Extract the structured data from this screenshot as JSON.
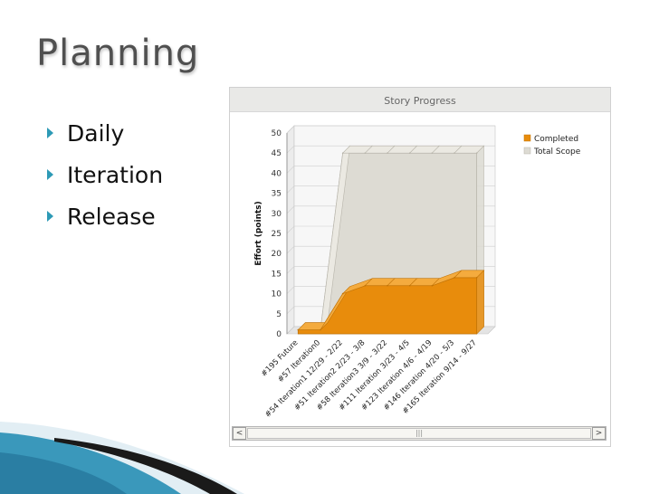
{
  "slide": {
    "title": "Planning",
    "bullets": [
      "Daily",
      "Iteration",
      "Release"
    ]
  },
  "chart_window": {
    "title": "Story Progress",
    "scrollbar": {
      "left_arrow": "<",
      "right_arrow": ">",
      "thumb_grip": "|||"
    }
  },
  "colors": {
    "completed": "#e88c0c",
    "total_scope": "#dddbd3",
    "bullet_arrow": "#2d9ab6",
    "wave": "#2f93b8"
  },
  "chart_data": {
    "type": "area",
    "title": "Story Progress",
    "xlabel": "",
    "ylabel": "Effort (points)",
    "ylim": [
      0,
      50
    ],
    "yticks": [
      0,
      5,
      10,
      15,
      20,
      25,
      30,
      35,
      40,
      45,
      50
    ],
    "grid": true,
    "legend_position": "top-right",
    "categories": [
      "#195 Future",
      "#57 Iteration0",
      "#54 Iteration1 12/29 - 2/22",
      "#51 Iteration2 2/23 - 3/8",
      "#58 Iteration3 3/9 - 3/22",
      "#111 Iteration 3/23 - 4/5",
      "#123 Iteration 4/6 - 4/19",
      "#146 Iteration 4/20 - 5/3",
      "#165 Iteration 9/14 - 9/27"
    ],
    "series": [
      {
        "name": "Completed",
        "values": [
          1,
          1,
          10,
          12,
          12,
          12,
          12,
          14,
          14
        ]
      },
      {
        "name": "Total Scope",
        "values": [
          1,
          1,
          45,
          45,
          45,
          45,
          45,
          45,
          45
        ]
      }
    ]
  }
}
